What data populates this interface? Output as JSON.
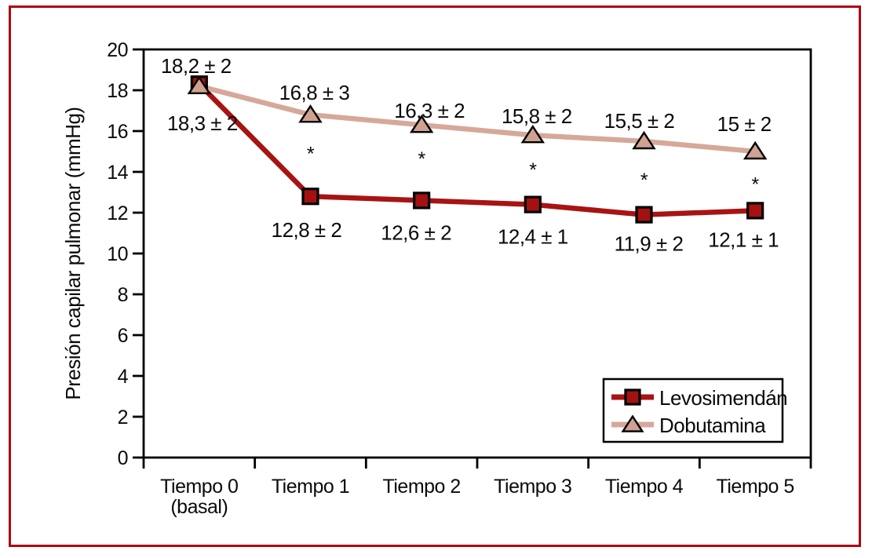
{
  "figure": {
    "border_color": "#ae0712",
    "background": "#ffffff",
    "axis_color": "#000000",
    "text_color": "#0a0a0a"
  },
  "chart_data": {
    "type": "line",
    "title": "",
    "xlabel": "",
    "ylabel": "Presión capilar pulmonar (mmHg)",
    "ylim": [
      0,
      20
    ],
    "yticks": [
      0,
      2,
      4,
      6,
      8,
      10,
      12,
      14,
      16,
      18,
      20
    ],
    "grid": false,
    "categories": [
      [
        "Tiempo 0",
        "(basal)"
      ],
      [
        "Tiempo 1"
      ],
      [
        "Tiempo 2"
      ],
      [
        "Tiempo 3"
      ],
      [
        "Tiempo 4"
      ],
      [
        "Tiempo 5"
      ]
    ],
    "series": [
      {
        "name": "Levosimendán",
        "marker": "square",
        "line_color": "#a81313",
        "marker_fill": "#a31111",
        "marker_stroke": "#000000",
        "values": [
          18.3,
          12.8,
          12.6,
          12.4,
          11.9,
          12.1
        ],
        "point_labels": [
          "18,3 ± 2",
          "12,8 ± 2",
          "12,6 ± 2",
          "12,4 ± 1",
          "11,9 ± 2",
          "12,1 ± 1"
        ],
        "label_offsets": [
          [
            4,
            59
          ],
          [
            -5,
            52
          ],
          [
            -7,
            50
          ],
          [
            0,
            50
          ],
          [
            6,
            46
          ],
          [
            -15,
            46
          ]
        ]
      },
      {
        "name": "Dobutamina",
        "marker": "triangle",
        "line_color": "#d6a89a",
        "marker_fill": "#d0a191",
        "marker_stroke": "#000000",
        "values": [
          18.2,
          16.8,
          16.3,
          15.8,
          15.5,
          15
        ],
        "point_labels": [
          "18,2 ± 2",
          "16,8 ± 3",
          "16,3 ± 2",
          "15,8 ± 2",
          "15,5 ± 2",
          "15 ± 2"
        ],
        "label_offsets": [
          [
            -4,
            -17
          ],
          [
            5,
            -19
          ],
          [
            10,
            -9
          ],
          [
            5,
            -15
          ],
          [
            -6,
            -17
          ],
          [
            -14,
            -26
          ]
        ]
      }
    ],
    "annotations": {
      "symbol": "*",
      "points": [
        {
          "x_index": 1,
          "y": 15.1
        },
        {
          "x_index": 2,
          "y": 14.85
        },
        {
          "x_index": 3,
          "y": 14.3
        },
        {
          "x_index": 4,
          "y": 13.8
        },
        {
          "x_index": 5,
          "y": 13.6
        }
      ]
    },
    "legend": {
      "position": "bottom-right",
      "entries": [
        "Levosimendán",
        "Dobutamina"
      ]
    }
  }
}
